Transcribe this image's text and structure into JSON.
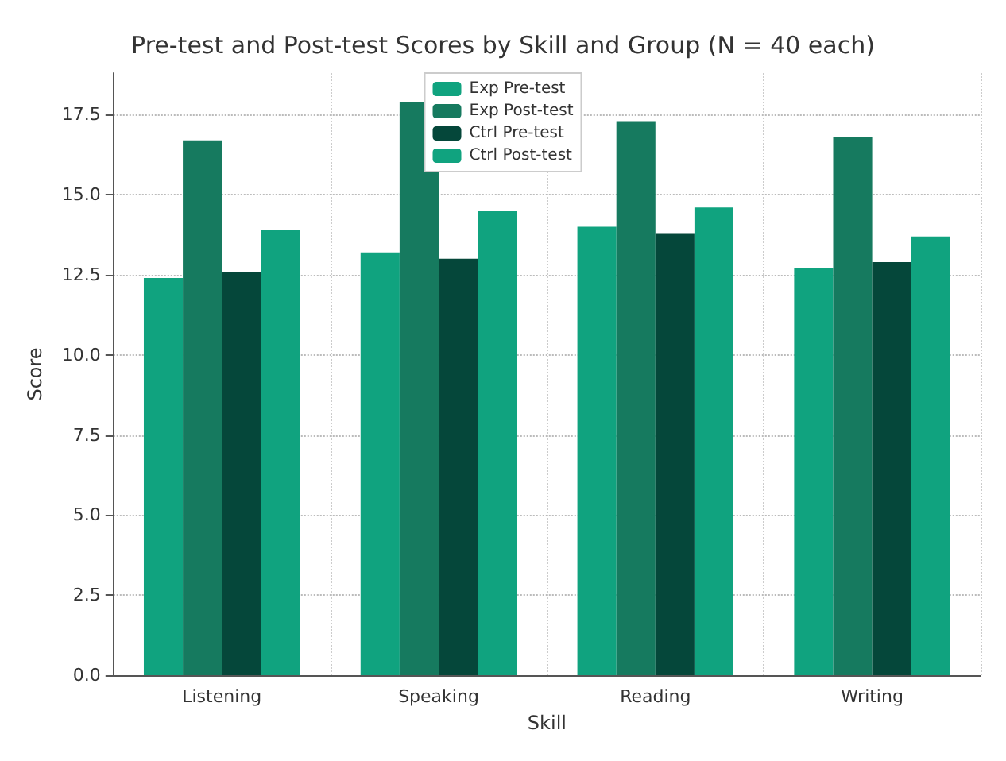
{
  "chart_data": {
    "type": "bar",
    "title": "Pre-test and Post-test Scores by Skill and Group (N = 40 each)",
    "xlabel": "Skill",
    "ylabel": "Score",
    "categories": [
      "Listening",
      "Speaking",
      "Reading",
      "Writing"
    ],
    "series": [
      {
        "name": "Exp Pre-test",
        "color": "#10a37f",
        "values": [
          12.4,
          13.2,
          14.0,
          12.7
        ]
      },
      {
        "name": "Exp Post-test",
        "color": "#167a5f",
        "values": [
          16.7,
          17.9,
          17.3,
          16.8
        ]
      },
      {
        "name": "Ctrl Pre-test",
        "color": "#05473a",
        "values": [
          12.6,
          13.0,
          13.8,
          12.9
        ]
      },
      {
        "name": "Ctrl Post-test",
        "color": "#10a37f",
        "values": [
          13.9,
          14.5,
          14.6,
          13.7
        ]
      }
    ],
    "ylim": [
      0,
      18.8
    ],
    "yticks": [
      {
        "value": 0,
        "label": "0.0"
      },
      2.5,
      {
        "value": 5,
        "label": "5.0"
      },
      7.5,
      {
        "value": 10,
        "label": "10.0"
      },
      12.5,
      {
        "value": 15,
        "label": "15.0"
      },
      17.5
    ],
    "grid": true,
    "legend": "top"
  }
}
